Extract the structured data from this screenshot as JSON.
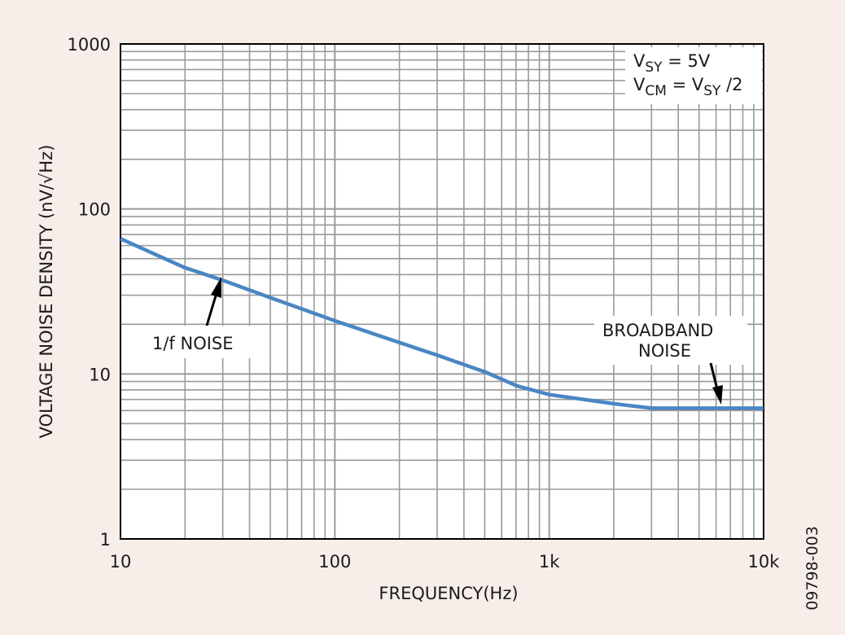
{
  "chart_data": {
    "type": "line",
    "xscale": "log",
    "yscale": "log",
    "xlim": [
      10,
      10000
    ],
    "ylim": [
      1,
      1000
    ],
    "x_ticks": [
      10,
      100,
      1000,
      10000
    ],
    "x_tick_labels": [
      "10",
      "100",
      "1k",
      "10k"
    ],
    "y_ticks": [
      1,
      10,
      100,
      1000
    ],
    "y_tick_labels": [
      "1",
      "10",
      "100",
      "1000"
    ],
    "xlabel": "FREQUENCY(Hz)",
    "ylabel": "VOLTAGE NOISE DENSITY (nV/√Hz)",
    "grid": true,
    "series": [
      {
        "color": "#4a86c4",
        "x": [
          10,
          20,
          30,
          50,
          100,
          200,
          300,
          500,
          700,
          1000,
          2000,
          3000,
          5000,
          10000
        ],
        "y": [
          66,
          44,
          37,
          29,
          21,
          15.5,
          13,
          10.3,
          8.5,
          7.5,
          6.6,
          6.2,
          6.2,
          6.2
        ]
      }
    ],
    "conditions": {
      "line1": {
        "v": "V",
        "sub": "SY",
        "rest": " = 5V"
      },
      "line2": {
        "v": "V",
        "sub": "CM",
        "mid": " = V",
        "sub2": "SY",
        "rest": " /2"
      }
    },
    "annotations": {
      "one_over_f": "1/f NOISE",
      "broadband_line1": "BROADBAND",
      "broadband_line2": "NOISE"
    },
    "figure_id": "09798-003"
  },
  "colors": {
    "background": "#f7eeea",
    "plot_area": "#ffffff",
    "grid": "#9a9a9a",
    "line": "#4a86c4",
    "frame": "#000000"
  }
}
